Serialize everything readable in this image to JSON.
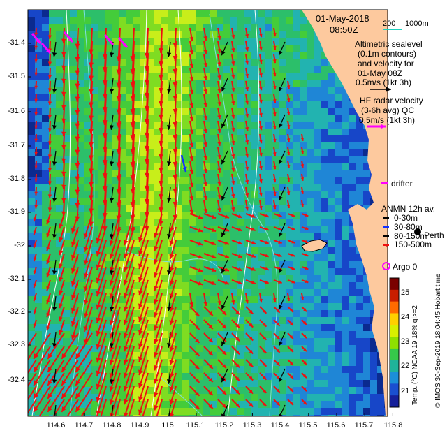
{
  "header": {
    "date": "01-May-2018",
    "time": "08:50Z",
    "scalebar_labels": [
      "200",
      "1000m"
    ]
  },
  "legend": {
    "altimetric_title": [
      "Altimetric sealevel",
      "(0.1m contours)",
      "and velocity for",
      "01-May 08Z"
    ],
    "altimetric_scale": "0.5m/s (1kt 3h)",
    "hf_title": [
      "HF radar velocity",
      "(3-6h avg) QC"
    ],
    "hf_scale": "0.5m/s (1kt 3h)",
    "drifter": "drifter",
    "anmn_title": "ANMN 12h av.",
    "anmn_depths": [
      "0-30m",
      "30-80m",
      "80-150m",
      "150-500m"
    ],
    "argo": "Argo 0",
    "place_name": "Perth"
  },
  "colorbar": {
    "label": "Temp. (°C) NOAA 19 18% ql>=2",
    "ticks": [
      "25",
      "24",
      "23",
      "22",
      "21"
    ],
    "colors": [
      "#7a0000",
      "#c81e00",
      "#ff6a00",
      "#ffd000",
      "#d8f000",
      "#8fe000",
      "#36c84a",
      "#1fb39a",
      "#1b8fd8",
      "#1a4fd0",
      "#16209a"
    ]
  },
  "credit": "© IMOS 30-Sep-2019 18:04:45 Hobart time",
  "axes": {
    "lat_ticks": [
      "-31.4",
      "-31.5",
      "-31.6",
      "-31.7",
      "-31.8",
      "-31.9",
      "-32",
      "-32.1",
      "-32.2",
      "-32.3",
      "-32.4"
    ],
    "lon_ticks": [
      "114.6",
      "114.7",
      "114.8",
      "114.9",
      "115",
      "115.1",
      "115.2",
      "115.3",
      "115.4",
      "115.5",
      "115.6",
      "115.7",
      "115.8"
    ]
  },
  "map_colors": {
    "land": "#fdc99e",
    "hf_arrow": "#ee1010",
    "alt_arrow": "#000000",
    "drifter": "#ff00ff",
    "contour": "#ffffff",
    "isobath": "#7fe0e0"
  }
}
